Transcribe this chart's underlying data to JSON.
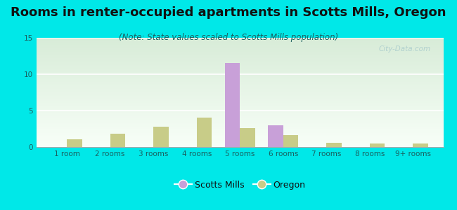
{
  "title": "Rooms in renter-occupied apartments in Scotts Mills, Oregon",
  "subtitle": "(Note: State values scaled to Scotts Mills population)",
  "categories": [
    "1 room",
    "2 rooms",
    "3 rooms",
    "4 rooms",
    "5 rooms",
    "6 rooms",
    "7 rooms",
    "8 rooms",
    "9+ rooms"
  ],
  "scotts_mills": [
    0,
    0,
    0,
    0,
    11.5,
    3.0,
    0,
    0,
    0
  ],
  "oregon": [
    1.1,
    1.8,
    2.8,
    4.0,
    2.6,
    1.6,
    0.6,
    0.5,
    0.5
  ],
  "scotts_mills_color": "#c8a0d8",
  "oregon_color": "#c8cc88",
  "background_color": "#00e8e8",
  "plot_bg_top": "#d8ecd8",
  "plot_bg_bottom": "#f8fff8",
  "ylim": [
    0,
    15
  ],
  "yticks": [
    0,
    5,
    10,
    15
  ],
  "bar_width": 0.35,
  "watermark": "City-Data.com",
  "title_fontsize": 13,
  "subtitle_fontsize": 8.5,
  "tick_fontsize": 7.5,
  "legend_fontsize": 9
}
